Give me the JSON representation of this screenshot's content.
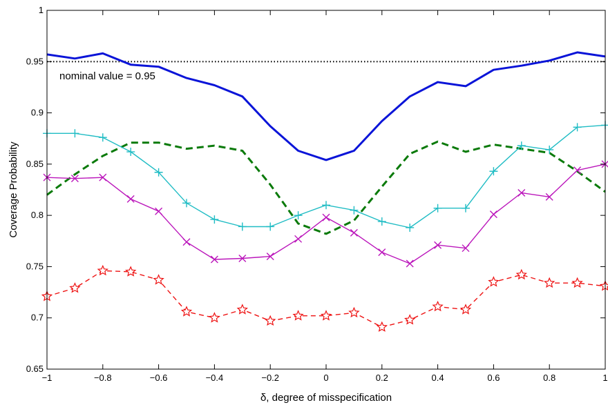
{
  "chart_data": {
    "type": "line",
    "title": "",
    "xlabel": "δ, degree of misspecification",
    "ylabel": "Coverage Probability",
    "xlim": [
      -1,
      1
    ],
    "ylim": [
      0.65,
      1
    ],
    "xticks": [
      -1,
      -0.8,
      -0.6,
      -0.4,
      -0.2,
      0,
      0.2,
      0.4,
      0.6,
      0.8,
      1
    ],
    "xtick_labels": [
      "−1",
      "−0.8",
      "−0.6",
      "−0.4",
      "−0.2",
      "0",
      "0.2",
      "0.4",
      "0.6",
      "0.8",
      "1"
    ],
    "yticks": [
      0.65,
      0.7,
      0.75,
      0.8,
      0.85,
      0.9,
      0.95,
      1
    ],
    "ytick_labels": [
      "0.65",
      "0.7",
      "0.75",
      "0.8",
      "0.85",
      "0.9",
      "0.95",
      "1"
    ],
    "grid": false,
    "legend": "none",
    "annotation": {
      "text": "nominal value = 0.95",
      "x": -0.99,
      "y": 0.936
    },
    "x": [
      -1,
      -0.9,
      -0.8,
      -0.7,
      -0.6,
      -0.5,
      -0.4,
      -0.3,
      -0.2,
      -0.1,
      0,
      0.1,
      0.2,
      0.3,
      0.4,
      0.5,
      0.6,
      0.7,
      0.8,
      0.9,
      1
    ],
    "series": [
      {
        "values": [
          0.95,
          0.95,
          0.95,
          0.95,
          0.95,
          0.95,
          0.95,
          0.95,
          0.95,
          0.95,
          0.95,
          0.95,
          0.95,
          0.95,
          0.95,
          0.95,
          0.95,
          0.95,
          0.95,
          0.95,
          0.95
        ],
        "color": "#000000",
        "style": "dotted",
        "marker": "none",
        "width": 2
      },
      {
        "values": [
          0.957,
          0.953,
          0.958,
          0.947,
          0.945,
          0.934,
          0.927,
          0.916,
          0.887,
          0.863,
          0.854,
          0.863,
          0.892,
          0.916,
          0.93,
          0.926,
          0.942,
          0.946,
          0.951,
          0.959,
          0.955
        ],
        "color": "#0a14d8",
        "style": "solid",
        "marker": "none",
        "width": 3
      },
      {
        "values": [
          0.82,
          0.84,
          0.858,
          0.871,
          0.871,
          0.865,
          0.868,
          0.863,
          0.83,
          0.792,
          0.782,
          0.795,
          0.828,
          0.86,
          0.872,
          0.862,
          0.869,
          0.865,
          0.861,
          0.843,
          0.823
        ],
        "color": "#0a7a0a",
        "style": "dashed",
        "marker": "none",
        "width": 3
      },
      {
        "values": [
          0.88,
          0.88,
          0.876,
          0.862,
          0.842,
          0.812,
          0.796,
          0.789,
          0.789,
          0.8,
          0.81,
          0.805,
          0.794,
          0.788,
          0.807,
          0.807,
          0.843,
          0.868,
          0.864,
          0.886,
          0.888
        ],
        "color": "#1fbcc4",
        "style": "solid",
        "marker": "plus",
        "width": 1.4
      },
      {
        "values": [
          0.837,
          0.836,
          0.837,
          0.816,
          0.804,
          0.774,
          0.757,
          0.758,
          0.76,
          0.777,
          0.798,
          0.783,
          0.764,
          0.753,
          0.771,
          0.768,
          0.801,
          0.822,
          0.818,
          0.844,
          0.85
        ],
        "color": "#bb16bb",
        "style": "solid",
        "marker": "x",
        "width": 1.4
      },
      {
        "values": [
          0.721,
          0.729,
          0.746,
          0.745,
          0.737,
          0.706,
          0.7,
          0.708,
          0.697,
          0.702,
          0.702,
          0.705,
          0.691,
          0.698,
          0.711,
          0.708,
          0.735,
          0.742,
          0.734,
          0.734,
          0.731
        ],
        "color": "#ee1111",
        "style": "dashed",
        "marker": "star",
        "width": 1.4
      }
    ]
  }
}
